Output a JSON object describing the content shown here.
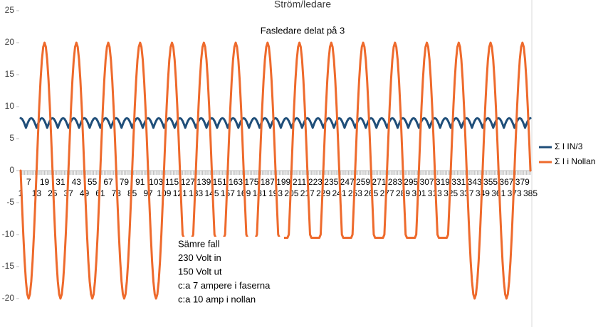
{
  "chart_data": {
    "type": "line",
    "title": "Ström/ledare",
    "subtitle": "Fasledare delat på 3",
    "annotations": [
      "Sämre fall",
      "230 Volt in",
      "150 Volt ut",
      "c:a 7 ampere i faserna",
      "c:a 10 amp i nollan"
    ],
    "ylim": [
      -24,
      25
    ],
    "yticks": [
      -20,
      -15,
      -10,
      -5,
      0,
      5,
      10,
      15,
      20,
      25
    ],
    "legend": "right",
    "categories": [
      1,
      null,
      null,
      null,
      null,
      null,
      7,
      null,
      null,
      null,
      null,
      null,
      13,
      null,
      null,
      null,
      null,
      null,
      19,
      null,
      null,
      null,
      null,
      null,
      25,
      null,
      null,
      null,
      null,
      null,
      31,
      null,
      null,
      null,
      null,
      null,
      37,
      null,
      null,
      null,
      null,
      null,
      43,
      null,
      null,
      null,
      null,
      null,
      49,
      null,
      null,
      null,
      null,
      null,
      55,
      null,
      null,
      null,
      null,
      null,
      61,
      null,
      null,
      null,
      null,
      null,
      67,
      null,
      null,
      null,
      null,
      null,
      73,
      null,
      null,
      null,
      null,
      null,
      79,
      null,
      null,
      null,
      null,
      null,
      85,
      null,
      null,
      null,
      null,
      null,
      91,
      null,
      null,
      null,
      null,
      null,
      97,
      null,
      null,
      null,
      null,
      null,
      103,
      null,
      null,
      null,
      null,
      null,
      109,
      null,
      null,
      null,
      null,
      null,
      115,
      null,
      null,
      null,
      null,
      null,
      121,
      null,
      null,
      null,
      null,
      null,
      127,
      null,
      null,
      null,
      null,
      null,
      133,
      null,
      null,
      null,
      null,
      null,
      139,
      null,
      null,
      null,
      null,
      null,
      145,
      null,
      null,
      null,
      null,
      null,
      151,
      null,
      null,
      null,
      null,
      null,
      157,
      null,
      null,
      null,
      null,
      null,
      163,
      null,
      null,
      null,
      null,
      null,
      169,
      null,
      null,
      null,
      null,
      null,
      175,
      null,
      null,
      null,
      null,
      null,
      181,
      null,
      null,
      null,
      null,
      null,
      187,
      null,
      null,
      null,
      null,
      null,
      193,
      null,
      null,
      null,
      null,
      null,
      199,
      null,
      null,
      null,
      null,
      null,
      205,
      null,
      null,
      null,
      null,
      null,
      211,
      null,
      null,
      null,
      null,
      null,
      217,
      null,
      null,
      null,
      null,
      null,
      223,
      null,
      null,
      null,
      null,
      null,
      229,
      null,
      null,
      null,
      null,
      null,
      235,
      null,
      null,
      null,
      null,
      null,
      241,
      null,
      null,
      null,
      null,
      null,
      247,
      null,
      null,
      null,
      null,
      null,
      253,
      null,
      null,
      null,
      null,
      null,
      259,
      null,
      null,
      null,
      null,
      null,
      265,
      null,
      null,
      null,
      null,
      null,
      271,
      null,
      null,
      null,
      null,
      null,
      277,
      null,
      null,
      null,
      null,
      null,
      283,
      null,
      null,
      null,
      null,
      null,
      289,
      null,
      null,
      null,
      null,
      null,
      295,
      null,
      null,
      null,
      null,
      null,
      301,
      null,
      null,
      null,
      null,
      null,
      307,
      null,
      null,
      null,
      null,
      null,
      313,
      null,
      null,
      null,
      null,
      null,
      319,
      null,
      null,
      null,
      null,
      null,
      325,
      null,
      null,
      null,
      null,
      null,
      331,
      null,
      null,
      null,
      null,
      null,
      337,
      null,
      null,
      null,
      null,
      null,
      343,
      null,
      null,
      null,
      null,
      null,
      349,
      null,
      null,
      null,
      null,
      null,
      355,
      null,
      null,
      null,
      null,
      null,
      361,
      null,
      null,
      null,
      null,
      null,
      367,
      null,
      null,
      null,
      null,
      null,
      373,
      null,
      null,
      null,
      null,
      null,
      379,
      null,
      null,
      null,
      null,
      null,
      385
    ],
    "series": [
      {
        "name": "Σ I IN/3",
        "color": "#1f4e79",
        "values": [
          8.2,
          8.09,
          7.76,
          7.27,
          6.7,
          7.27,
          7.76,
          8.09,
          8.2,
          8.09,
          7.76,
          7.27,
          6.7,
          7.27,
          7.76,
          8.09,
          8.2,
          8.09,
          7.76,
          7.27,
          6.7,
          7.27,
          7.76,
          8.09,
          8.2,
          8.09,
          7.76,
          7.27,
          6.7,
          7.27,
          7.76,
          8.09,
          8.2,
          8.09,
          7.76,
          7.27,
          6.7,
          7.27,
          7.76,
          8.09,
          8.2,
          8.09,
          7.76,
          7.27,
          6.7,
          7.27,
          7.76,
          8.09,
          8.2,
          8.09,
          7.76,
          7.27,
          6.7,
          7.27,
          7.76,
          8.09,
          8.2,
          8.09,
          7.76,
          7.27,
          6.7,
          7.27,
          7.76,
          8.09,
          8.2,
          8.09,
          7.76,
          7.27,
          6.7,
          7.27,
          7.76,
          8.09,
          8.2,
          8.09,
          7.76,
          7.27,
          6.7,
          7.27,
          7.76,
          8.09,
          8.2,
          8.09,
          7.76,
          7.27,
          6.7,
          7.27,
          7.76,
          8.09,
          8.2,
          8.09,
          7.76,
          7.27,
          6.7,
          7.27,
          7.76,
          8.09,
          8.2,
          8.09,
          7.76,
          7.27,
          6.7,
          7.27,
          7.76,
          8.09,
          8.2,
          8.09,
          7.76,
          7.27,
          6.7,
          7.27,
          7.76,
          8.09,
          8.2,
          8.09,
          7.76,
          7.27,
          6.7,
          7.27,
          7.76,
          8.09,
          8.2,
          8.09,
          7.76,
          7.27,
          6.7,
          7.27,
          7.76,
          8.09,
          8.2,
          8.09,
          7.76,
          7.27,
          6.7,
          7.27,
          7.76,
          8.09,
          8.2,
          8.09,
          7.76,
          7.27,
          6.7,
          7.27,
          7.76,
          8.09,
          8.2,
          8.09,
          7.76,
          7.27,
          6.7,
          7.27,
          7.76,
          8.09,
          8.2,
          8.09,
          7.76,
          7.27,
          6.7,
          7.27,
          7.76,
          8.09,
          8.2,
          8.09,
          7.76,
          7.27,
          6.7,
          7.27,
          7.76,
          8.09,
          8.2,
          8.09,
          7.76,
          7.27,
          6.7,
          7.27,
          7.76,
          8.09,
          8.2,
          8.09,
          7.76,
          7.27,
          6.7,
          7.27,
          7.76,
          8.09,
          8.2,
          8.09,
          7.76,
          7.27,
          6.7,
          7.27,
          7.76,
          8.09,
          8.2,
          8.09,
          7.76,
          7.27,
          6.7,
          7.27,
          7.76,
          8.09,
          8.2,
          8.09,
          7.76,
          7.27,
          6.7,
          7.27,
          7.76,
          8.09,
          8.2,
          8.09,
          7.76,
          7.27,
          6.7,
          7.27,
          7.76,
          8.09,
          8.2,
          8.09,
          7.76,
          7.27,
          6.7,
          7.27,
          7.76,
          8.09,
          8.2,
          8.09,
          7.76,
          7.27,
          6.7,
          7.27,
          7.76,
          8.09,
          8.2,
          8.09,
          7.76,
          7.27,
          6.7,
          7.27,
          7.76,
          8.09,
          8.2,
          8.09,
          7.76,
          7.27,
          6.7,
          7.27,
          7.76,
          8.09,
          8.2,
          8.09,
          7.76,
          7.27,
          6.7,
          7.27,
          7.76,
          8.09,
          8.2,
          8.09,
          7.76,
          7.27,
          6.7,
          7.27,
          7.76,
          8.09,
          8.2,
          8.09,
          7.76,
          7.27,
          6.7,
          7.27,
          7.76,
          8.09,
          8.2,
          8.09,
          7.76,
          7.27,
          6.7,
          7.27,
          7.76,
          8.09,
          8.2,
          8.09,
          7.76,
          7.27,
          6.7,
          7.27,
          7.76,
          8.09,
          8.2,
          8.09,
          7.76,
          7.27,
          6.7,
          7.27,
          7.76,
          8.09,
          8.2,
          8.09,
          7.76,
          7.27,
          6.7,
          7.27,
          7.76,
          8.09,
          8.2,
          8.09,
          7.76,
          7.27,
          6.7,
          7.27,
          7.76,
          8.09,
          8.2,
          8.09,
          7.76,
          7.27,
          6.7,
          7.27,
          7.76,
          8.09,
          8.2,
          8.09,
          7.76,
          7.27,
          6.7,
          7.27,
          7.76,
          8.09,
          8.2,
          8.09,
          7.76,
          7.27,
          6.7,
          7.27,
          7.76,
          8.09,
          8.2,
          8.09,
          7.76,
          7.27,
          6.7,
          7.27,
          7.76,
          8.09,
          8.2,
          8.09,
          7.76,
          7.27,
          6.7,
          7.27,
          7.76,
          8.09,
          8.2,
          8.09,
          7.76,
          7.27,
          6.7,
          7.27,
          7.76,
          8.09,
          8.2,
          8.09,
          7.76,
          7.27,
          6.7,
          7.27,
          7.76,
          8.09,
          8.2,
          8.09,
          7.76,
          7.27,
          6.7,
          7.27,
          7.76,
          8.09,
          8.2,
          8.09,
          7.76,
          7.27,
          6.7,
          7.27,
          7.76,
          8.09,
          8.2
        ]
      },
      {
        "name": "Σ I i Nollan",
        "color": "#ee6a2c",
        "values": [
          0,
          -5.18,
          -10,
          -14.14,
          -17.32,
          -19.32,
          -20,
          -19.32,
          -17.32,
          -14.14,
          -10,
          -5.18,
          0,
          5.18,
          10,
          14.14,
          17.32,
          19.32,
          20,
          19.32,
          17.32,
          14.14,
          10,
          5.18,
          0,
          -5.18,
          -10,
          -14.14,
          -17.32,
          -19.32,
          -20,
          -19.32,
          -17.32,
          -14.14,
          -10,
          -5.18,
          0,
          5.18,
          10,
          14.14,
          17.32,
          19.32,
          20,
          19.32,
          17.32,
          14.14,
          10,
          5.18,
          0,
          -5.18,
          -10,
          -14.14,
          -17.32,
          -19.32,
          -20,
          -19.32,
          -17.32,
          -14.14,
          -10,
          -5.18,
          0,
          5.18,
          10,
          14.14,
          17.32,
          19.32,
          20,
          19.32,
          17.32,
          14.14,
          10,
          5.18,
          0,
          -5.18,
          -10,
          -14.14,
          -17.32,
          -19.32,
          -20,
          -19.32,
          -17.32,
          -14.14,
          -10,
          -5.18,
          0,
          5.18,
          10,
          14.14,
          17.32,
          19.32,
          20,
          19.32,
          17.32,
          14.14,
          10,
          5.18,
          0,
          -5.18,
          -10,
          -14.14,
          -17.32,
          -19.32,
          -20,
          -19.32,
          -17.32,
          -14.14,
          -10,
          -5.18,
          0,
          5.18,
          10,
          14.14,
          17.32,
          19.32,
          20,
          19.32,
          17.32,
          14.14,
          10,
          5.18,
          0,
          -5.18,
          -10,
          -10.5,
          -10.5,
          -10.5,
          -10.5,
          -10.5,
          -10.5,
          -10.5,
          -10,
          -5.18,
          0,
          5.18,
          10,
          14.14,
          17.32,
          19.32,
          20,
          19.32,
          17.32,
          14.14,
          10,
          5.18,
          0,
          -5.18,
          -10,
          -10.5,
          -10.5,
          -10.5,
          -10.5,
          -10.5,
          -10.5,
          -10.5,
          -10,
          -5.18,
          0,
          5.18,
          10,
          14.14,
          17.32,
          19.32,
          20,
          19.32,
          17.32,
          14.14,
          10,
          5.18,
          0,
          -5.18,
          -10,
          -10.5,
          -10.5,
          -10.5,
          -10.5,
          -10.5,
          -10.5,
          -10.5,
          -10,
          -5.18,
          0,
          5.18,
          10,
          14.14,
          17.32,
          19.32,
          20,
          19.32,
          17.32,
          14.14,
          10,
          5.18,
          0,
          -5.18,
          -10,
          -10.5,
          -10.5,
          -10.5,
          -10.5,
          -10.5,
          -10.5,
          -10.5,
          -10,
          -5.18,
          0,
          5.18,
          10,
          14.14,
          17.32,
          19.32,
          20,
          19.32,
          17.32,
          14.14,
          10,
          5.18,
          0,
          -5.18,
          -10,
          -10.5,
          -10.5,
          -10.5,
          -10.5,
          -10.5,
          -10.5,
          -10.5,
          -10,
          -5.18,
          0,
          5.18,
          10,
          14.14,
          17.32,
          19.32,
          20,
          19.32,
          17.32,
          14.14,
          10,
          5.18,
          0,
          -5.18,
          -10,
          -10.5,
          -10.5,
          -10.5,
          -10.5,
          -10.5,
          -10.5,
          -10.5,
          -10,
          -5.18,
          0,
          5.18,
          10,
          14.14,
          17.32,
          19.32,
          20,
          19.32,
          17.32,
          14.14,
          10,
          5.18,
          0,
          -5.18,
          -10,
          -10.5,
          -10.5,
          -10.5,
          -10.5,
          -10.5,
          -10.5,
          -10.5,
          -10,
          -5.18,
          0,
          5.18,
          10,
          14.14,
          17.32,
          19.32,
          20,
          19.32,
          17.32,
          14.14,
          10,
          5.18,
          0,
          -5.18,
          -10,
          -10.5,
          -10.5,
          -10.5,
          -10.5,
          -10.5,
          -10.5,
          -10.5,
          -10,
          -5.18,
          0,
          5.18,
          10,
          14.14,
          17.32,
          19.32,
          20,
          19.32,
          17.32,
          14.14,
          10,
          5.18,
          0,
          -5.18,
          -10,
          -10.5,
          -10.5,
          -10.5,
          -10.5,
          -10.5,
          -10.5,
          -10.5,
          -10,
          -5.18,
          0,
          5.18,
          10,
          14.14,
          17.32,
          19.32,
          20,
          19.32,
          17.32,
          14.14,
          10,
          5.18,
          0,
          -5.18,
          -10,
          -14.14,
          -17.32,
          -19.32,
          -20,
          -19.32,
          -17.32,
          -14.14,
          -10,
          -5.18,
          0,
          5.18,
          10,
          14.14,
          17.32,
          19.32,
          20,
          19.32,
          17.32,
          14.14,
          10,
          5.18,
          0,
          -5.18,
          -10,
          -14.14,
          -17.32,
          -19.32,
          -20,
          -19.32,
          -17.32,
          -14.14,
          -10,
          -5.18,
          0,
          5.18,
          10,
          14.14,
          17.32,
          19.32,
          20,
          19.32,
          17.32,
          14.14,
          10,
          5.18,
          0
        ]
      }
    ]
  }
}
